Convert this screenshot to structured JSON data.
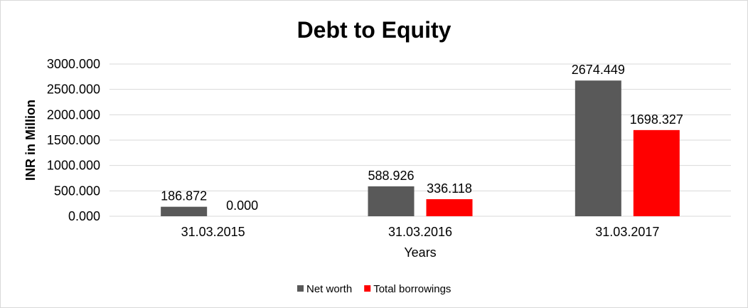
{
  "chart_data": {
    "type": "bar",
    "title": "Debt to Equity",
    "xlabel": "Years",
    "ylabel": "INR in Million",
    "categories": [
      "31.03.2015",
      "31.03.2016",
      "31.03.2017"
    ],
    "series": [
      {
        "name": "Net worth",
        "color": "#595959",
        "values": [
          186.872,
          588.926,
          2674.449
        ],
        "labels": [
          "186.872",
          "588.926",
          "2674.449"
        ]
      },
      {
        "name": "Total borrowings",
        "color": "#ff0000",
        "values": [
          0.0,
          336.118,
          1698.327
        ],
        "labels": [
          "0.000",
          "336.118",
          "1698.327"
        ]
      }
    ],
    "ylim": [
      0,
      3000
    ],
    "yticks": [
      0,
      500,
      1000,
      1500,
      2000,
      2500,
      3000
    ],
    "ytick_labels": [
      "0.000",
      "500.000",
      "1000.000",
      "1500.000",
      "2000.000",
      "2500.000",
      "3000.000"
    ],
    "grid": true,
    "grid_color": "#d9d9d9",
    "legend_position": "bottom"
  }
}
